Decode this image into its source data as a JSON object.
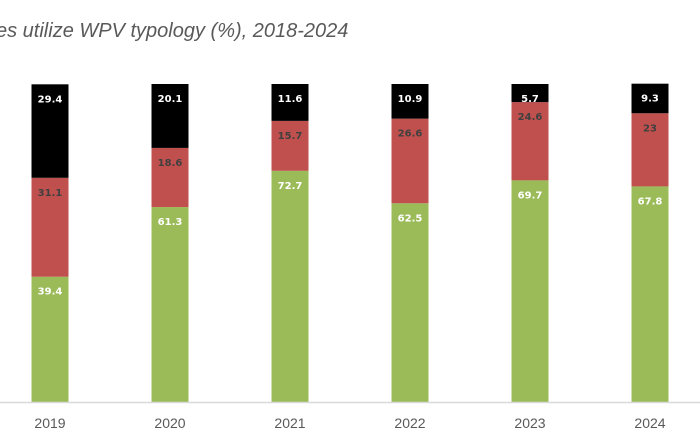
{
  "chart_data": {
    "type": "bar",
    "stacked": true,
    "title": "es utilize WPV typology (%), 2018-2024",
    "xlabel": "",
    "ylabel": "",
    "ylim": [
      0,
      100
    ],
    "grid": false,
    "legend": "none visible",
    "categories": [
      "2019",
      "2020",
      "2021",
      "2022",
      "2023",
      "2024"
    ],
    "series": [
      {
        "name": "bottom",
        "color": "#9BBB59",
        "label_color": "#FFFFFF",
        "values": [
          39.4,
          61.3,
          72.7,
          62.5,
          69.7,
          67.8
        ]
      },
      {
        "name": "middle",
        "color": "#C0504D",
        "label_color": "#404040",
        "values": [
          31.1,
          18.6,
          15.7,
          26.6,
          24.6,
          23
        ]
      },
      {
        "name": "top",
        "color": "#000000",
        "label_color": "#FFFFFF",
        "values": [
          29.4,
          20.1,
          11.6,
          10.9,
          5.7,
          9.3
        ]
      }
    ],
    "axis_color": "#D9D9D9"
  }
}
